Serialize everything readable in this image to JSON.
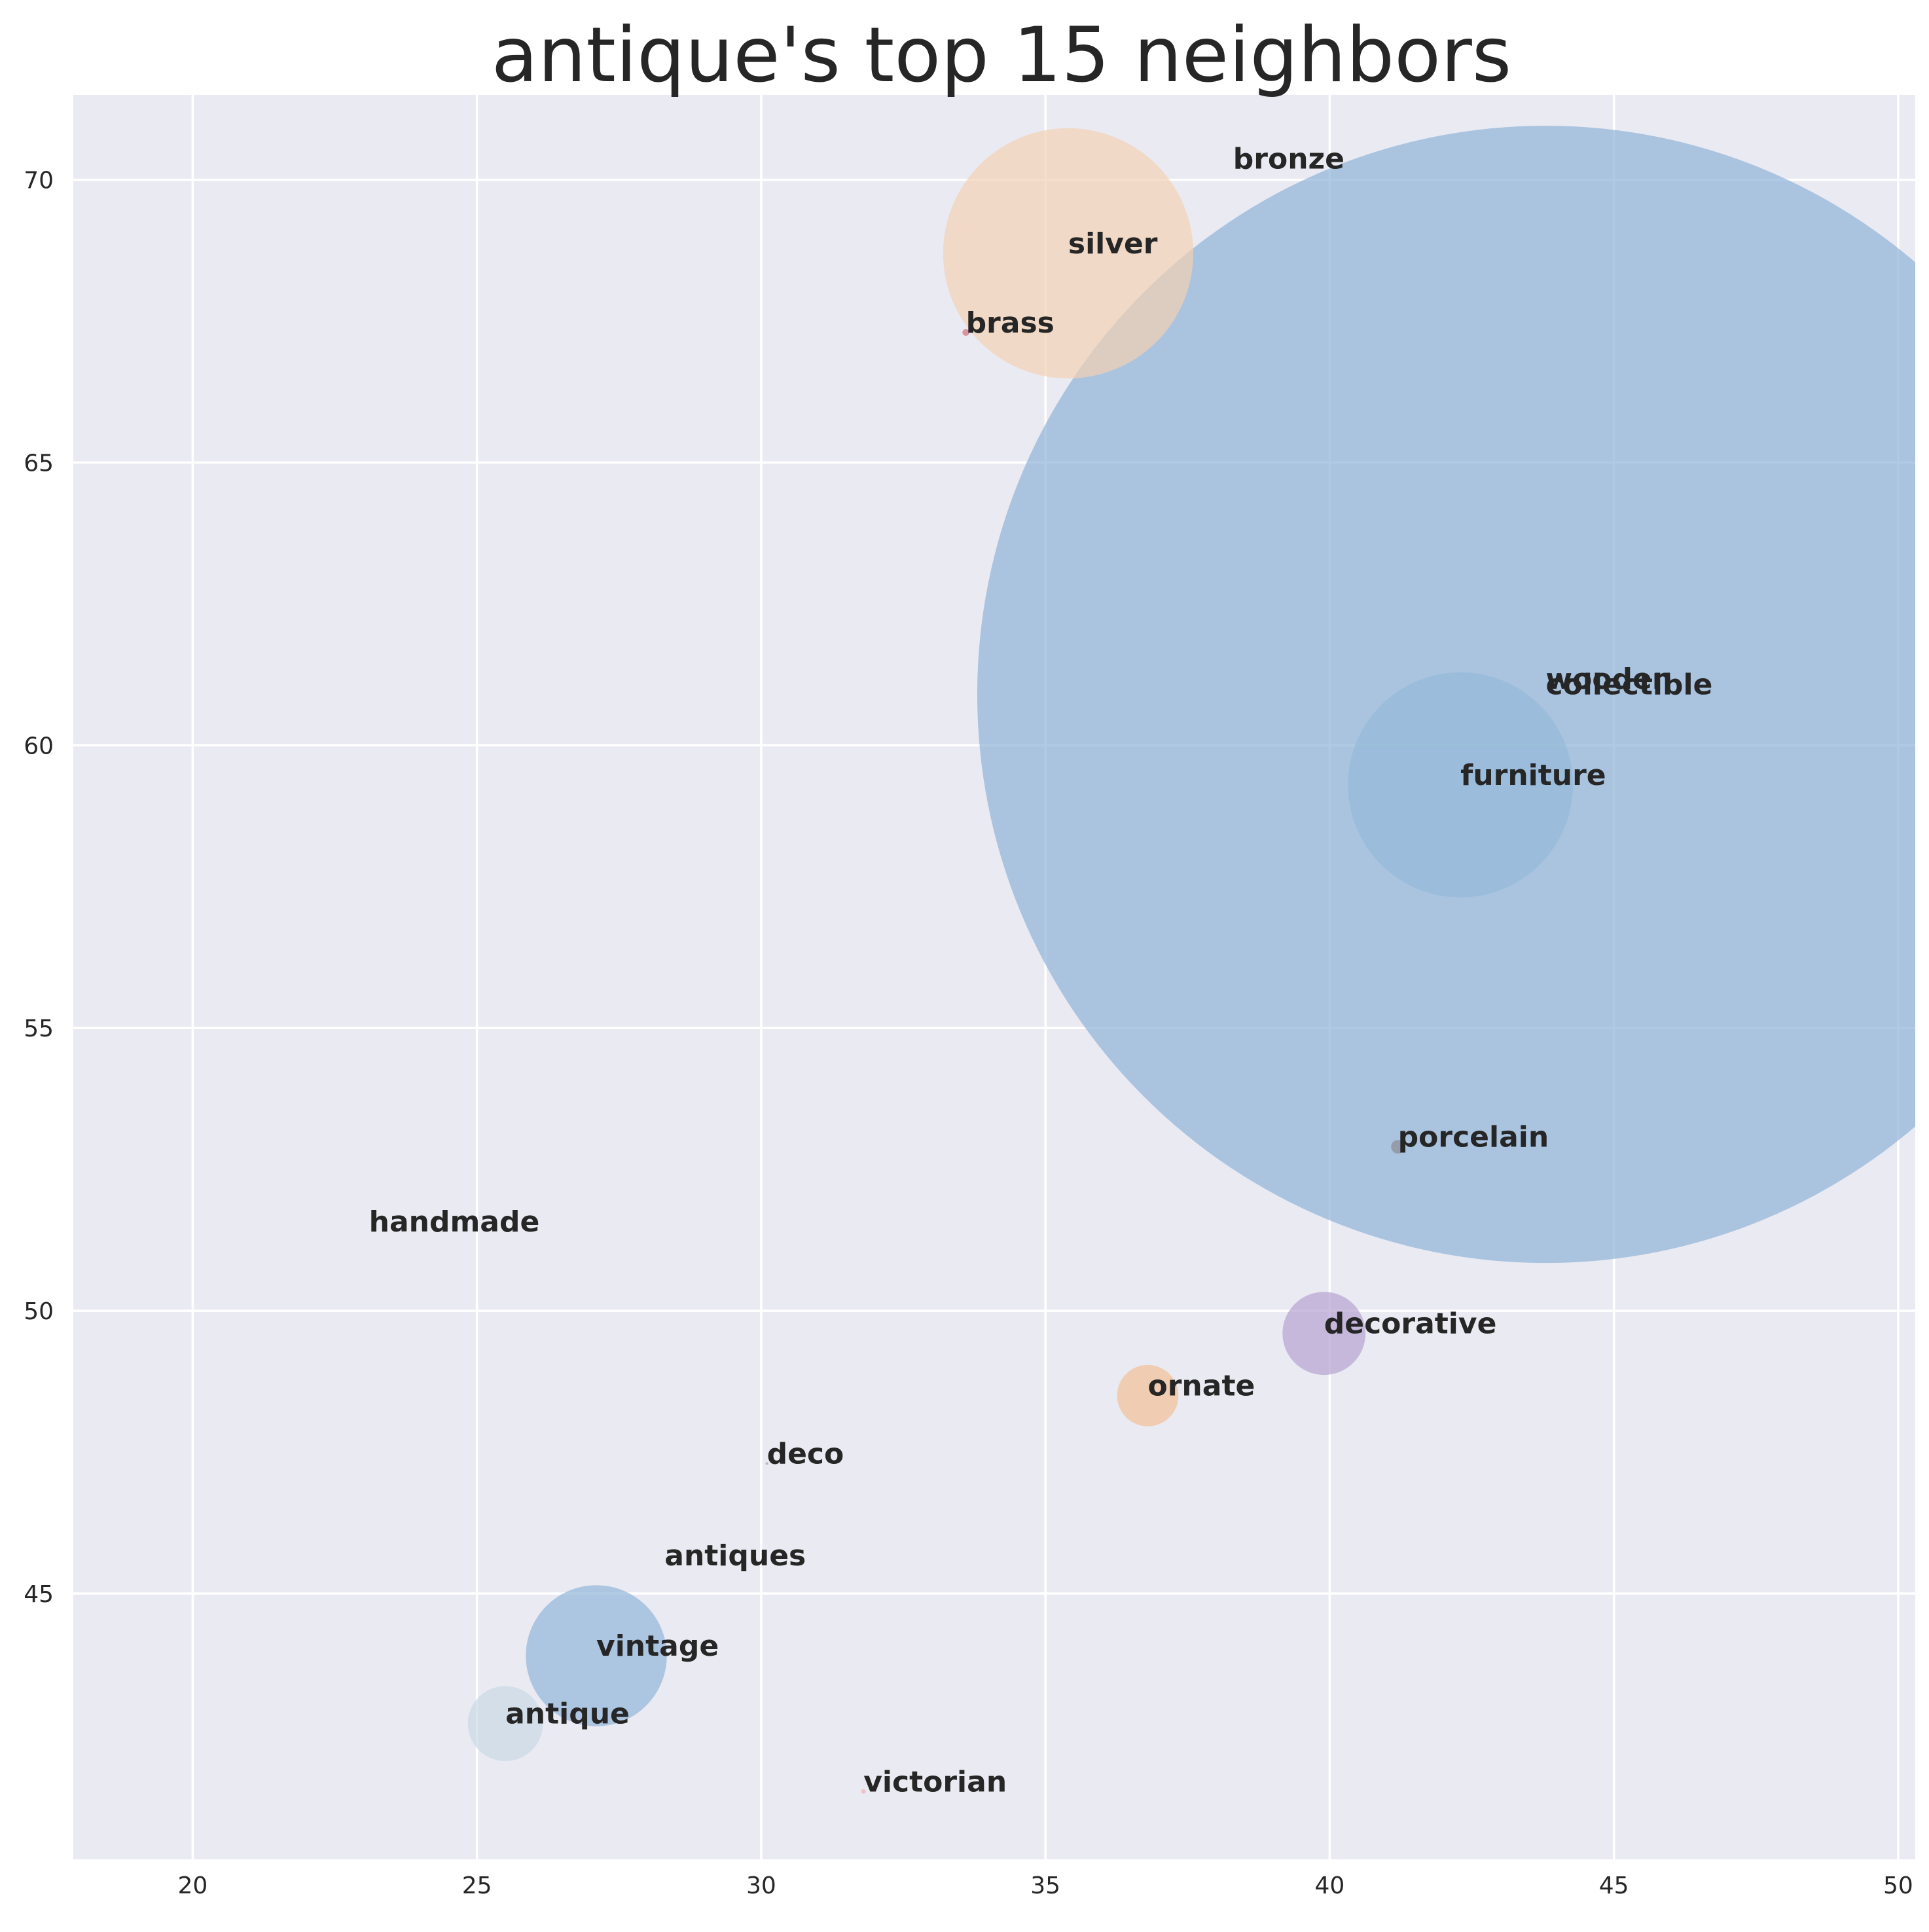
{
  "chart_data": {
    "type": "scatter",
    "title": "antique's top 15 neighbors",
    "xlabel": "",
    "ylabel": "",
    "xlim": [
      17.9,
      50.3
    ],
    "ylim": [
      40.3,
      71.5
    ],
    "x_ticks": [
      20,
      25,
      30,
      35,
      40,
      45,
      50
    ],
    "y_ticks": [
      45,
      50,
      55,
      60,
      65,
      70
    ],
    "grid": true,
    "background_color": "#eaeaf2",
    "grid_color": "#ffffff",
    "points": [
      {
        "label": "collectible",
        "x": 43.8,
        "y": 60.9,
        "size_radius": 10.0,
        "color": "#8fb3d9"
      },
      {
        "label": "furniture",
        "x": 42.3,
        "y": 59.3,
        "size_radius": 1.98,
        "color": "#94bad8"
      },
      {
        "label": "silver",
        "x": 35.4,
        "y": 68.7,
        "size_radius": 2.2,
        "color": "#f2d2b4"
      },
      {
        "label": "vintage",
        "x": 27.1,
        "y": 43.9,
        "size_radius": 1.24,
        "color": "#92b5d9"
      },
      {
        "label": "decorative",
        "x": 39.9,
        "y": 49.6,
        "size_radius": 0.73,
        "color": "#b6a2d1"
      },
      {
        "label": "antique",
        "x": 25.5,
        "y": 42.7,
        "size_radius": 0.66,
        "color": "#c9d8e6"
      },
      {
        "label": "ornate",
        "x": 36.8,
        "y": 48.5,
        "size_radius": 0.54,
        "color": "#f2c097"
      },
      {
        "label": "porcelain",
        "x": 41.2,
        "y": 52.9,
        "size_radius": 0.12,
        "color": "#8c8c94"
      },
      {
        "label": "brass",
        "x": 33.6,
        "y": 67.3,
        "size_radius": 0.06,
        "color": "#d07078"
      },
      {
        "label": "victorian",
        "x": 31.8,
        "y": 41.5,
        "size_radius": 0.04,
        "color": "#f2b2b2"
      },
      {
        "label": "deco",
        "x": 30.1,
        "y": 47.3,
        "size_radius": 0.02,
        "color": "#a0a0a8"
      },
      {
        "label": "bronze",
        "x": 38.3,
        "y": 70.2,
        "size_radius": 0,
        "color": "#d08f6b"
      },
      {
        "label": "wooden",
        "x": 43.8,
        "y": 61.0,
        "size_radius": 0,
        "color": "#d08f6b"
      },
      {
        "label": "handmade",
        "x": 23.1,
        "y": 51.4,
        "size_radius": 0,
        "color": "#d08f6b"
      },
      {
        "label": "antiques",
        "x": 28.3,
        "y": 45.5,
        "size_radius": 0,
        "color": "#d08f6b"
      }
    ]
  }
}
